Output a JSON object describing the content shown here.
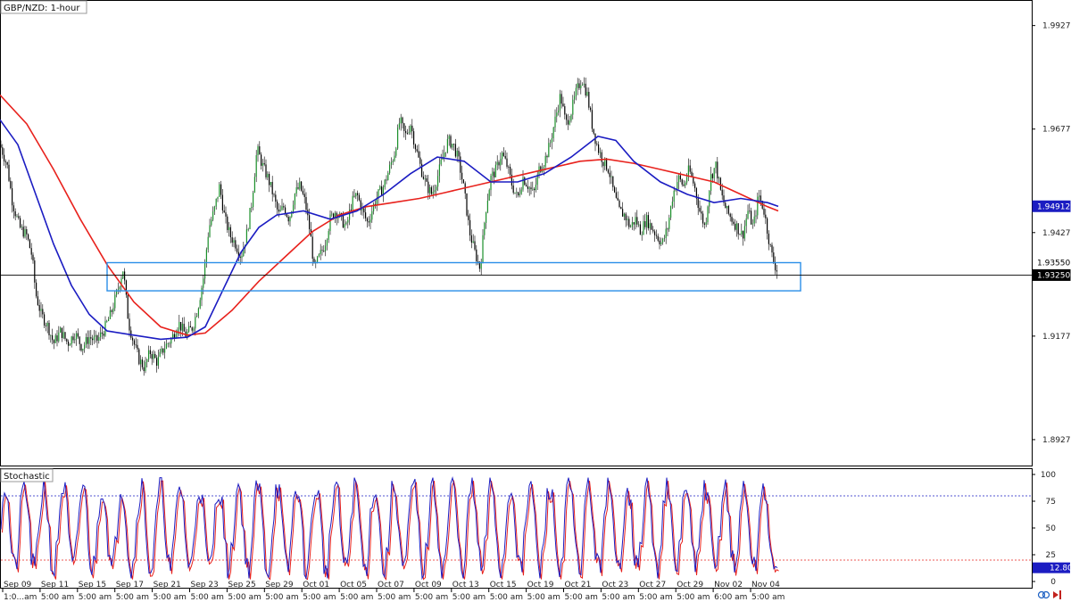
{
  "chart_data": [
    {
      "type": "candlestick",
      "title": "GBP/NZD: 1-hour",
      "y_axis": {
        "min": 1.8865,
        "max": 1.9985,
        "ticks": [
          1.99276,
          1.96776,
          1.94276,
          1.91776,
          1.89276
        ],
        "tick_labels": [
          "1.99276",
          "1.96776",
          "1.94276",
          "1.91776",
          "1.89276"
        ]
      },
      "x_axis": {
        "labels": [
          "Sep 09",
          "1:0...am",
          "Sep 11",
          "5:00 am",
          "Sep 15",
          "5:00 am",
          "Sep 17",
          "5:00 am",
          "Sep 21",
          "5:00 am",
          "Sep 23",
          "5:00 am",
          "Sep 25",
          "5:00 am",
          "Sep 29",
          "5:00 am",
          "Oct 01",
          "5:00 am",
          "Oct 05",
          "5:00 am",
          "Oct 07",
          "5:00 am",
          "Oct 09",
          "5:00 am",
          "Oct 13",
          "5:00 am",
          "Oct 15",
          "5:00 am",
          "Oct 19",
          "5:00 am",
          "Oct 21",
          "5:00 am",
          "Oct 23",
          "5:00 am",
          "Oct 27",
          "5:00 am",
          "Oct 29",
          "5:00 am",
          "Nov 02",
          "6:00 am",
          "Nov 04",
          "5:00 am"
        ]
      },
      "price_path": [
        [
          0,
          1.964
        ],
        [
          8,
          1.959
        ],
        [
          14,
          1.95
        ],
        [
          22,
          1.944
        ],
        [
          30,
          1.942
        ],
        [
          36,
          1.937
        ],
        [
          40,
          1.928
        ],
        [
          46,
          1.923
        ],
        [
          54,
          1.92
        ],
        [
          60,
          1.916
        ],
        [
          68,
          1.919
        ],
        [
          76,
          1.916
        ],
        [
          84,
          1.9185
        ],
        [
          92,
          1.915
        ],
        [
          100,
          1.9175
        ],
        [
          108,
          1.9165
        ],
        [
          116,
          1.919
        ],
        [
          124,
          1.923
        ],
        [
          132,
          1.929
        ],
        [
          138,
          1.934
        ],
        [
          144,
          1.921
        ],
        [
          150,
          1.916
        ],
        [
          156,
          1.912
        ],
        [
          162,
          1.91
        ],
        [
          168,
          1.914
        ],
        [
          176,
          1.9115
        ],
        [
          184,
          1.915
        ],
        [
          192,
          1.917
        ],
        [
          200,
          1.921
        ],
        [
          208,
          1.918
        ],
        [
          216,
          1.92
        ],
        [
          222,
          1.925
        ],
        [
          228,
          1.932
        ],
        [
          234,
          1.944
        ],
        [
          240,
          1.948
        ],
        [
          246,
          1.954
        ],
        [
          252,
          1.946
        ],
        [
          258,
          1.942
        ],
        [
          264,
          1.94
        ],
        [
          270,
          1.937
        ],
        [
          276,
          1.942
        ],
        [
          282,
          1.95
        ],
        [
          288,
          1.963
        ],
        [
          294,
          1.959
        ],
        [
          300,
          1.956
        ],
        [
          306,
          1.952
        ],
        [
          312,
          1.947
        ],
        [
          318,
          1.949
        ],
        [
          324,
          1.946
        ],
        [
          330,
          1.952
        ],
        [
          336,
          1.954
        ],
        [
          342,
          1.95
        ],
        [
          348,
          1.942
        ],
        [
          352,
          1.934
        ],
        [
          358,
          1.937
        ],
        [
          364,
          1.94
        ],
        [
          370,
          1.946
        ],
        [
          376,
          1.948
        ],
        [
          382,
          1.946
        ],
        [
          388,
          1.944
        ],
        [
          394,
          1.95
        ],
        [
          400,
          1.952
        ],
        [
          406,
          1.948
        ],
        [
          412,
          1.945
        ],
        [
          418,
          1.949
        ],
        [
          424,
          1.952
        ],
        [
          430,
          1.954
        ],
        [
          436,
          1.958
        ],
        [
          442,
          1.962
        ],
        [
          448,
          1.97
        ],
        [
          454,
          1.966
        ],
        [
          460,
          1.969
        ],
        [
          466,
          1.963
        ],
        [
          472,
          1.958
        ],
        [
          478,
          1.954
        ],
        [
          484,
          1.952
        ],
        [
          490,
          1.956
        ],
        [
          496,
          1.961
        ],
        [
          502,
          1.965
        ],
        [
          508,
          1.964
        ],
        [
          514,
          1.96
        ],
        [
          520,
          1.953
        ],
        [
          526,
          1.943
        ],
        [
          532,
          1.938
        ],
        [
          538,
          1.934
        ],
        [
          544,
          1.948
        ],
        [
          550,
          1.956
        ],
        [
          556,
          1.958
        ],
        [
          562,
          1.962
        ],
        [
          568,
          1.959
        ],
        [
          574,
          1.954
        ],
        [
          580,
          1.951
        ],
        [
          586,
          1.956
        ],
        [
          592,
          1.954
        ],
        [
          598,
          1.952
        ],
        [
          604,
          1.958
        ],
        [
          610,
          1.96
        ],
        [
          616,
          1.964
        ],
        [
          622,
          1.97
        ],
        [
          628,
          1.976
        ],
        [
          634,
          1.969
        ],
        [
          640,
          1.972
        ],
        [
          646,
          1.977
        ],
        [
          652,
          1.98
        ],
        [
          658,
          1.976
        ],
        [
          664,
          1.968
        ],
        [
          670,
          1.963
        ],
        [
          676,
          1.96
        ],
        [
          682,
          1.958
        ],
        [
          688,
          1.952
        ],
        [
          694,
          1.948
        ],
        [
          700,
          1.947
        ],
        [
          706,
          1.944
        ],
        [
          712,
          1.946
        ],
        [
          718,
          1.943
        ],
        [
          724,
          1.946
        ],
        [
          730,
          1.944
        ],
        [
          736,
          1.942
        ],
        [
          742,
          1.94
        ],
        [
          748,
          1.944
        ],
        [
          754,
          1.952
        ],
        [
          760,
          1.956
        ],
        [
          766,
          1.954
        ],
        [
          772,
          1.958
        ],
        [
          778,
          1.954
        ],
        [
          784,
          1.948
        ],
        [
          790,
          1.944
        ],
        [
          796,
          1.956
        ],
        [
          802,
          1.959
        ],
        [
          808,
          1.952
        ],
        [
          814,
          1.948
        ],
        [
          820,
          1.946
        ],
        [
          826,
          1.944
        ],
        [
          832,
          1.942
        ],
        [
          838,
          1.948
        ],
        [
          844,
          1.944
        ],
        [
          850,
          1.952
        ],
        [
          856,
          1.948
        ],
        [
          860,
          1.943
        ],
        [
          864,
          1.938
        ],
        [
          868,
          1.935
        ],
        [
          872,
          1.933
        ]
      ],
      "moving_averages": [
        {
          "color": "#e8221d",
          "points": [
            [
              0,
              1.976
            ],
            [
              30,
              1.969
            ],
            [
              60,
              1.958
            ],
            [
              90,
              1.946
            ],
            [
              120,
              1.935
            ],
            [
              150,
              1.926
            ],
            [
              180,
              1.92
            ],
            [
              210,
              1.918
            ],
            [
              230,
              1.9185
            ],
            [
              260,
              1.924
            ],
            [
              290,
              1.931
            ],
            [
              320,
              1.937
            ],
            [
              350,
              1.943
            ],
            [
              380,
              1.947
            ],
            [
              410,
              1.949
            ],
            [
              440,
              1.95
            ],
            [
              470,
              1.951
            ],
            [
              500,
              1.9525
            ],
            [
              530,
              1.954
            ],
            [
              560,
              1.9555
            ],
            [
              590,
              1.957
            ],
            [
              620,
              1.9585
            ],
            [
              650,
              1.96
            ],
            [
              680,
              1.9605
            ],
            [
              710,
              1.9595
            ],
            [
              740,
              1.958
            ],
            [
              770,
              1.9565
            ],
            [
              800,
              1.955
            ],
            [
              830,
              1.952
            ],
            [
              860,
              1.949
            ],
            [
              872,
              1.948
            ]
          ]
        },
        {
          "color": "#1b1cc2",
          "points": [
            [
              0,
              1.97
            ],
            [
              20,
              1.964
            ],
            [
              40,
              1.952
            ],
            [
              60,
              1.94
            ],
            [
              80,
              1.93
            ],
            [
              100,
              1.923
            ],
            [
              120,
              1.919
            ],
            [
              150,
              1.918
            ],
            [
              180,
              1.917
            ],
            [
              210,
              1.9175
            ],
            [
              230,
              1.92
            ],
            [
              250,
              1.929
            ],
            [
              270,
              1.938
            ],
            [
              290,
              1.944
            ],
            [
              310,
              1.947
            ],
            [
              340,
              1.948
            ],
            [
              370,
              1.946
            ],
            [
              400,
              1.948
            ],
            [
              430,
              1.952
            ],
            [
              460,
              1.957
            ],
            [
              490,
              1.961
            ],
            [
              520,
              1.96
            ],
            [
              550,
              1.955
            ],
            [
              580,
              1.955
            ],
            [
              610,
              1.957
            ],
            [
              640,
              1.961
            ],
            [
              670,
              1.966
            ],
            [
              690,
              1.965
            ],
            [
              710,
              1.96
            ],
            [
              740,
              1.955
            ],
            [
              770,
              1.952
            ],
            [
              800,
              1.95
            ],
            [
              830,
              1.951
            ],
            [
              860,
              1.95
            ],
            [
              872,
              1.9491
            ]
          ]
        }
      ],
      "annotations": {
        "support_zone_top": 1.9355,
        "support_zone_bottom": 1.9287,
        "horizontal_line": 1.9325
      },
      "price_tags": [
        {
          "value": 1.94912,
          "label": "1.94912",
          "bg": "#1b1cc2",
          "fg": "#ffffff"
        },
        {
          "value": 1.9355,
          "label": "1.93550",
          "bg": "#ffffff",
          "fg": "#000000"
        },
        {
          "value": 1.9325,
          "label": "1.93250",
          "bg": "#000000",
          "fg": "#ffffff"
        }
      ]
    },
    {
      "type": "line",
      "title": "Stochastic",
      "y_axis": {
        "min": 0,
        "max": 100,
        "ticks": [
          100,
          75,
          50,
          25,
          0
        ],
        "tick_labels": [
          "100",
          "75",
          "50",
          "25",
          "0"
        ]
      },
      "levels": [
        80,
        20
      ],
      "current_value_label": "12.80",
      "oscillation_count": 40
    }
  ],
  "colors": {
    "bull_candle": "#1a8f2a",
    "bear_candle": "#000000",
    "support_zone": "#2a8fe8",
    "stoch_main": "#1b1cc2",
    "stoch_signal": "#e8221d",
    "axis_line": "#000000"
  }
}
